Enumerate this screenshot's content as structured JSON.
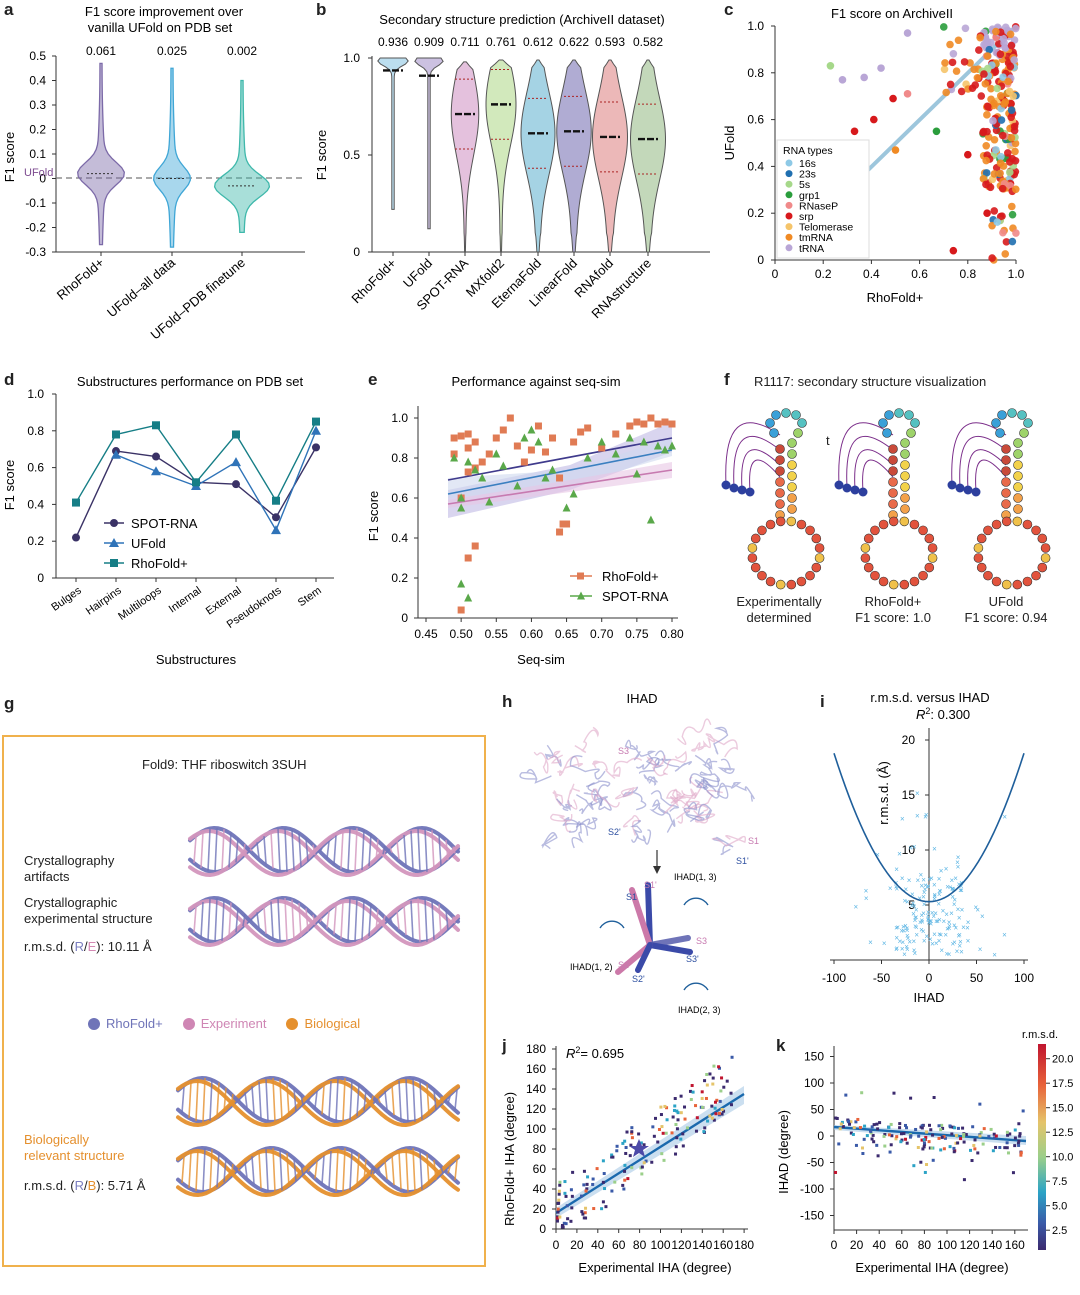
{
  "labels": {
    "a": "a",
    "b": "b",
    "c": "c",
    "d": "d",
    "e": "e",
    "f": "f",
    "g": "g",
    "h": "h",
    "i": "i",
    "j": "j",
    "k": "k"
  },
  "panel_a": {
    "title_line1": "F1 score improvement over",
    "title_line2": "vanilla UFold on PDB set",
    "ylabel": "F1 score",
    "ref_label": "UFold",
    "yticks": [
      "0.5",
      "0.4",
      "0.3",
      "0.2",
      "0.1",
      "0",
      "-0.1",
      "-0.2",
      "-0.3"
    ],
    "xticks": [
      "RhoFold+",
      "UFold–all data",
      "UFold–PDB finetune"
    ],
    "annotations": [
      "0.061",
      "0.025",
      "0.002"
    ]
  },
  "panel_b": {
    "title": "Secondary structure prediction (ArchiveII dataset)",
    "ylabel": "F1 score",
    "yticks": [
      "1.0",
      "0.5",
      "0"
    ],
    "xticks": [
      "RhoFold+",
      "UFold",
      "SPOT-RNA",
      "MXfold2",
      "EternaFold",
      "LinearFold",
      "RNAfold",
      "RNAstructure"
    ],
    "annotations": [
      "0.936",
      "0.909",
      "0.711",
      "0.761",
      "0.612",
      "0.622",
      "0.593",
      "0.582"
    ]
  },
  "panel_c": {
    "title": "F1 score on ArchiveII",
    "xlabel": "RhoFold+",
    "ylabel": "UFold",
    "ticks": [
      "0",
      "0.2",
      "0.4",
      "0.6",
      "0.8",
      "1.0"
    ],
    "legend_title": "RNA types",
    "legend": [
      "16s",
      "23s",
      "5s",
      "grp1",
      "RNaseP",
      "srp",
      "Telomerase",
      "tmRNA",
      "tRNA"
    ]
  },
  "panel_d": {
    "title": "Substructures performance on PDB set",
    "ylabel": "F1 score",
    "xlabel": "Substructures",
    "yticks": [
      "1.0",
      "0.8",
      "0.6",
      "0.4",
      "0.2",
      "0"
    ]
  },
  "panel_e": {
    "title": "Performance against seq-sim",
    "ylabel": "F1 score",
    "xlabel": "Seq-sim",
    "yticks": [
      "1.0",
      "0.8",
      "0.6",
      "0.4",
      "0.2",
      "0"
    ],
    "xticks": [
      "0.45",
      "0.50",
      "0.55",
      "0.60",
      "0.65",
      "0.70",
      "0.75",
      "0.80"
    ]
  },
  "panel_f": {
    "title": "R1117: secondary structure visualization",
    "stray": "t",
    "cap1a": "Experimentally",
    "cap1b": "determined",
    "cap2a": "RhoFold+",
    "cap2b": "F1 score: 1.0",
    "cap3a": "UFold",
    "cap3b": "F1 score: 0.94"
  },
  "panel_g": {
    "title": "Fold9: THF riboswitch 3SUH",
    "t1a": "Crystallography",
    "t1b": "artifacts",
    "t2a": "Crystallographic",
    "t2b": "experimental structure",
    "rmsd1_pre": "r.m.s.d. (",
    "rmsd1_R": "R",
    "rmsd1_sep": "/",
    "rmsd1_E": "E",
    "rmsd1_post": "): 10.11 Å",
    "legend": [
      "RhoFold+",
      "Experiment",
      "Biological"
    ],
    "t3a": "Biologically",
    "t3b": "relevant structure",
    "rmsd2_pre": "r.m.s.d. (",
    "rmsd2_R": "R",
    "rmsd2_sep": "/",
    "rmsd2_B": "B",
    "rmsd2_post": "): 5.71 Å"
  },
  "panel_h": {
    "title": "IHAD",
    "labels": [
      "S3",
      "S2'",
      "S1",
      "S1'",
      "S1'",
      "S1",
      "S3",
      "S3'",
      "S2",
      "S2'",
      "IHAD(1, 3)",
      "IHAD(1, 2)",
      "IHAD(2, 3)"
    ]
  },
  "panel_i": {
    "title": "r.m.s.d. versus IHAD",
    "r2_pre": "R",
    "r2_sup": "2",
    "r2_post": ": 0.300",
    "ylabel": "r.m.s.d. (Å)",
    "xlabel": "IHAD",
    "yticks": [
      "20",
      "15",
      "10",
      "5"
    ],
    "xticks": [
      "-100",
      "-50",
      "0",
      "50",
      "100"
    ]
  },
  "panel_j": {
    "r2_pre": "R",
    "r2_sup": "2",
    "r2_post": "= 0.695",
    "ylabel": "RhoFold+ IHA (degree)",
    "xlabel": "Experimental IHA (degree)",
    "yticks": [
      "180",
      "160",
      "140",
      "120",
      "100",
      "80",
      "60",
      "40",
      "20",
      "0"
    ],
    "xticks": [
      "0",
      "20",
      "40",
      "60",
      "80",
      "100",
      "120",
      "140",
      "160",
      "180"
    ]
  },
  "panel_k": {
    "ylabel": "IHAD (degree)",
    "xlabel": "Experimental IHA (degree)",
    "cbar_title": "r.m.s.d.",
    "cbar_ticks": [
      "20.0",
      "17.5",
      "15.0",
      "12.5",
      "10.0",
      "7.5",
      "5.0",
      "2.5"
    ],
    "yticks": [
      "150",
      "100",
      "50",
      "0",
      "-50",
      "-100",
      "-150"
    ],
    "xticks": [
      "0",
      "20",
      "40",
      "60",
      "80",
      "100",
      "120",
      "140",
      "160"
    ]
  },
  "chart_data": [
    {
      "id": "a",
      "type": "violin",
      "categories": [
        "RhoFold+",
        "UFold–all data",
        "UFold–PDB finetune"
      ],
      "means": [
        0.061,
        0.025,
        0.002
      ],
      "ylim": [
        -0.3,
        0.5
      ],
      "reference_line": 0,
      "colors": [
        "#7c6aa8",
        "#3fa6d6",
        "#3fb8ab"
      ]
    },
    {
      "id": "b",
      "type": "violin",
      "categories": [
        "RhoFold+",
        "UFold",
        "SPOT-RNA",
        "MXfold2",
        "EternaFold",
        "LinearFold",
        "RNAfold",
        "RNAstructure"
      ],
      "means": [
        0.936,
        0.909,
        0.711,
        0.761,
        0.612,
        0.622,
        0.593,
        0.582
      ],
      "ylim": [
        0,
        1.0
      ],
      "colors": [
        "#9fd0e8",
        "#b6a7d4",
        "#d9a7cf",
        "#bfe0a0",
        "#7fc0d8",
        "#8f89c0",
        "#e49a9a",
        "#a9c79c"
      ]
    },
    {
      "id": "c",
      "type": "scatter",
      "xlabel": "RhoFold+",
      "ylabel": "UFold",
      "xlim": [
        0,
        1.0
      ],
      "ylim": [
        0,
        1.0
      ],
      "series": [
        {
          "name": "16s",
          "color": "#8ec9e6"
        },
        {
          "name": "23s",
          "color": "#1f6fb0"
        },
        {
          "name": "5s",
          "color": "#a6d88a"
        },
        {
          "name": "grp1",
          "color": "#2a9d3c"
        },
        {
          "name": "RNaseP",
          "color": "#f08a8a"
        },
        {
          "name": "srp",
          "color": "#d7191c"
        },
        {
          "name": "Telomerase",
          "color": "#f5c46a"
        },
        {
          "name": "tmRNA",
          "color": "#f08a24"
        },
        {
          "name": "tRNA",
          "color": "#b9a6d6"
        }
      ]
    },
    {
      "id": "d",
      "type": "line",
      "categories": [
        "Bulges",
        "Hairpins",
        "Multiloops",
        "Internal",
        "External",
        "Pseudoknots",
        "Stem"
      ],
      "ylim": [
        0,
        1.0
      ],
      "series": [
        {
          "name": "SPOT-RNA",
          "color": "#3a3266",
          "marker": "circle",
          "values": [
            0.22,
            0.69,
            0.66,
            0.52,
            0.51,
            0.33,
            0.71
          ]
        },
        {
          "name": "UFold",
          "color": "#2f73b8",
          "marker": "triangle",
          "values": [
            null,
            0.67,
            0.58,
            0.5,
            0.63,
            0.26,
            0.8
          ]
        },
        {
          "name": "RhoFold+",
          "color": "#167e86",
          "marker": "square",
          "values": [
            0.41,
            0.78,
            0.83,
            0.52,
            0.78,
            0.42,
            0.85
          ]
        }
      ]
    },
    {
      "id": "e",
      "type": "scatter",
      "xlabel": "Seq-sim",
      "ylabel": "F1 score",
      "xlim": [
        0.45,
        0.8
      ],
      "ylim": [
        0,
        1.0
      ],
      "series": [
        {
          "name": "RhoFold+",
          "color": "#e07b54",
          "marker": "square",
          "x": [
            0.49,
            0.49,
            0.5,
            0.5,
            0.51,
            0.51,
            0.51,
            0.52,
            0.52,
            0.53,
            0.54,
            0.55,
            0.56,
            0.57,
            0.58,
            0.59,
            0.6,
            0.61,
            0.62,
            0.63,
            0.64,
            0.65,
            0.66,
            0.67,
            0.68,
            0.7,
            0.72,
            0.74,
            0.75,
            0.76,
            0.77,
            0.78,
            0.79,
            0.8,
            0.5,
            0.51,
            0.52,
            0.64,
            0.645
          ],
          "y": [
            0.82,
            0.9,
            0.91,
            0.6,
            0.92,
            0.85,
            0.73,
            0.88,
            0.75,
            0.78,
            0.82,
            0.9,
            0.94,
            1.0,
            0.86,
            0.78,
            0.84,
            0.96,
            0.83,
            0.9,
            0.7,
            0.47,
            0.88,
            0.93,
            0.95,
            0.85,
            0.92,
            0.96,
            0.98,
            0.97,
            1.0,
            0.97,
            0.98,
            0.97,
            0.04,
            0.3,
            0.36,
            0.43,
            0.47
          ]
        },
        {
          "name": "SPOT-RNA",
          "color": "#5aa84a",
          "marker": "triangle",
          "x": [
            0.49,
            0.5,
            0.5,
            0.51,
            0.52,
            0.53,
            0.54,
            0.55,
            0.56,
            0.58,
            0.59,
            0.6,
            0.61,
            0.62,
            0.63,
            0.65,
            0.66,
            0.68,
            0.7,
            0.72,
            0.74,
            0.75,
            0.76,
            0.78,
            0.79,
            0.8,
            0.5,
            0.51,
            0.77
          ],
          "y": [
            0.8,
            0.6,
            0.55,
            0.78,
            0.74,
            0.7,
            0.58,
            0.82,
            0.76,
            0.66,
            0.9,
            0.94,
            0.88,
            0.7,
            0.74,
            0.55,
            0.62,
            0.8,
            0.88,
            0.82,
            0.9,
            0.72,
            0.88,
            0.86,
            0.84,
            0.86,
            0.17,
            0.1,
            0.49
          ]
        }
      ]
    },
    {
      "id": "i",
      "type": "scatter",
      "xlabel": "IHAD",
      "ylabel": "r.m.s.d. (Å)",
      "xlim": [
        -100,
        100
      ],
      "ylim": [
        0,
        21
      ],
      "fit": "quadratic",
      "r2": 0.3,
      "color": "#5eb6e4"
    },
    {
      "id": "j",
      "type": "scatter",
      "xlabel": "Experimental IHA (degree)",
      "ylabel": "RhoFold+ IHA (degree)",
      "xlim": [
        0,
        180
      ],
      "ylim": [
        0,
        180
      ],
      "r2": 0.695,
      "fit": "linear"
    },
    {
      "id": "k",
      "type": "scatter",
      "xlabel": "Experimental IHA (degree)",
      "ylabel": "IHAD (degree)",
      "xlim": [
        0,
        170
      ],
      "ylim": [
        -175,
        170
      ],
      "colorbar": "r.m.s.d.",
      "fit": "linear"
    }
  ]
}
